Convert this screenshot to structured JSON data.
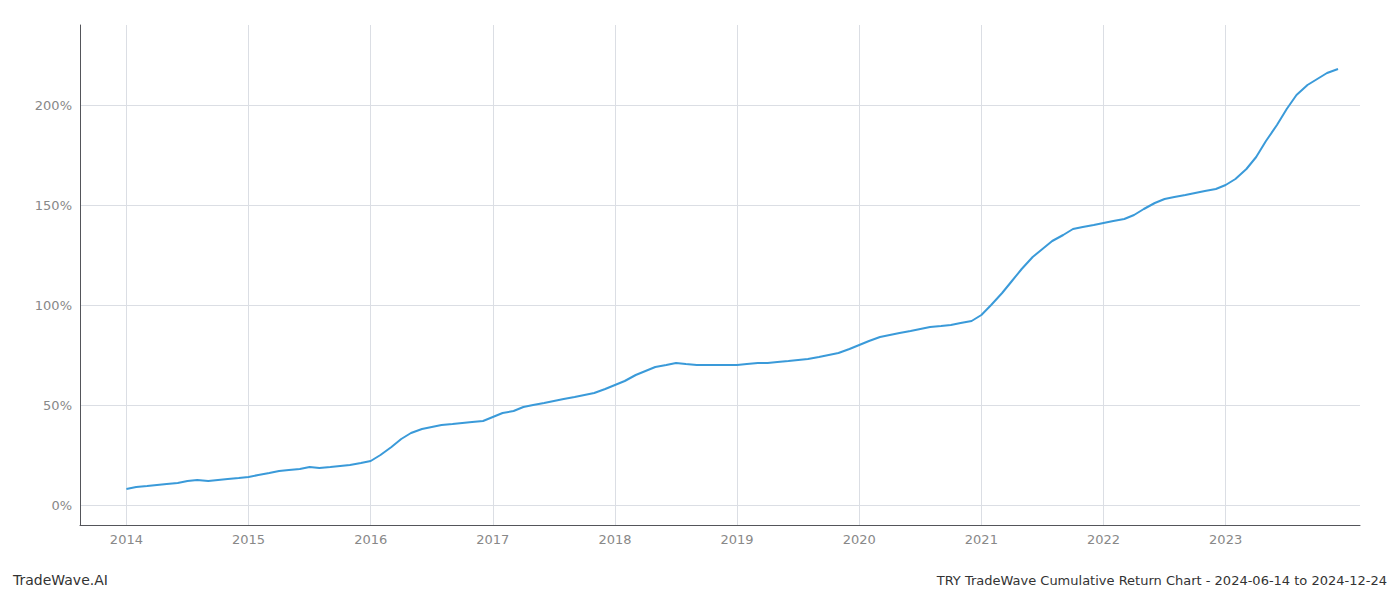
{
  "chart_data": {
    "type": "line",
    "title": "TRY TradeWave Cumulative Return Chart - 2024-06-14 to 2024-12-24",
    "annotations": [
      "TradeWave.AI"
    ],
    "color": "#3a9ad9",
    "grid": true,
    "x": [
      2014.0,
      2014.08,
      2014.17,
      2014.25,
      2014.33,
      2014.42,
      2014.5,
      2014.58,
      2014.67,
      2014.75,
      2014.83,
      2014.92,
      2015.0,
      2015.08,
      2015.17,
      2015.25,
      2015.33,
      2015.42,
      2015.5,
      2015.58,
      2015.67,
      2015.75,
      2015.83,
      2015.92,
      2016.0,
      2016.08,
      2016.17,
      2016.25,
      2016.33,
      2016.42,
      2016.5,
      2016.58,
      2016.67,
      2016.75,
      2016.83,
      2016.92,
      2017.0,
      2017.08,
      2017.17,
      2017.25,
      2017.33,
      2017.42,
      2017.5,
      2017.58,
      2017.67,
      2017.75,
      2017.83,
      2017.92,
      2018.0,
      2018.08,
      2018.17,
      2018.25,
      2018.33,
      2018.42,
      2018.5,
      2018.58,
      2018.67,
      2018.75,
      2018.83,
      2018.92,
      2019.0,
      2019.08,
      2019.17,
      2019.25,
      2019.33,
      2019.42,
      2019.5,
      2019.58,
      2019.67,
      2019.75,
      2019.83,
      2019.92,
      2020.0,
      2020.08,
      2020.17,
      2020.25,
      2020.33,
      2020.42,
      2020.5,
      2020.58,
      2020.67,
      2020.75,
      2020.83,
      2020.92,
      2021.0,
      2021.08,
      2021.17,
      2021.25,
      2021.33,
      2021.42,
      2021.5,
      2021.58,
      2021.67,
      2021.75,
      2021.83,
      2021.92,
      2022.0,
      2022.08,
      2022.17,
      2022.25,
      2022.33,
      2022.42,
      2022.5,
      2022.58,
      2022.67,
      2022.75,
      2022.83,
      2022.92,
      2023.0,
      2023.08,
      2023.17,
      2023.25,
      2023.33,
      2023.42,
      2023.5,
      2023.58,
      2023.67,
      2023.75,
      2023.83,
      2023.92
    ],
    "values": [
      8,
      9,
      9.5,
      10,
      10.5,
      11,
      12,
      12.5,
      12,
      12.5,
      13,
      13.5,
      14,
      15,
      16,
      17,
      17.5,
      18,
      19,
      18.5,
      19,
      19.5,
      20,
      21,
      22,
      25,
      29,
      33,
      36,
      38,
      39,
      40,
      40.5,
      41,
      41.5,
      42,
      44,
      46,
      47,
      49,
      50,
      51,
      52,
      53,
      54,
      55,
      56,
      58,
      60,
      62,
      65,
      67,
      69,
      70,
      71,
      70.5,
      70,
      70,
      70,
      70,
      70,
      70.5,
      71,
      71,
      71.5,
      72,
      72.5,
      73,
      74,
      75,
      76,
      78,
      80,
      82,
      84,
      85,
      86,
      87,
      88,
      89,
      89.5,
      90,
      91,
      92,
      95,
      100,
      106,
      112,
      118,
      124,
      128,
      132,
      135,
      138,
      139,
      140,
      141,
      142,
      143,
      145,
      148,
      151,
      153,
      154,
      155,
      156,
      157,
      158,
      160,
      163,
      168,
      174,
      182,
      190,
      198,
      205,
      210,
      213,
      216,
      218
    ],
    "xlim": [
      2013.62,
      2024.1
    ],
    "xticks": [
      2014,
      2015,
      2016,
      2017,
      2018,
      2019,
      2020,
      2021,
      2022,
      2023
    ],
    "ylim": [
      -10,
      240
    ],
    "yticks": [
      {
        "value": 0,
        "label": "0%"
      },
      {
        "value": 50,
        "label": "50%"
      },
      {
        "value": 100,
        "label": "100%"
      },
      {
        "value": 150,
        "label": "150%"
      },
      {
        "value": 200,
        "label": "200%"
      }
    ]
  }
}
